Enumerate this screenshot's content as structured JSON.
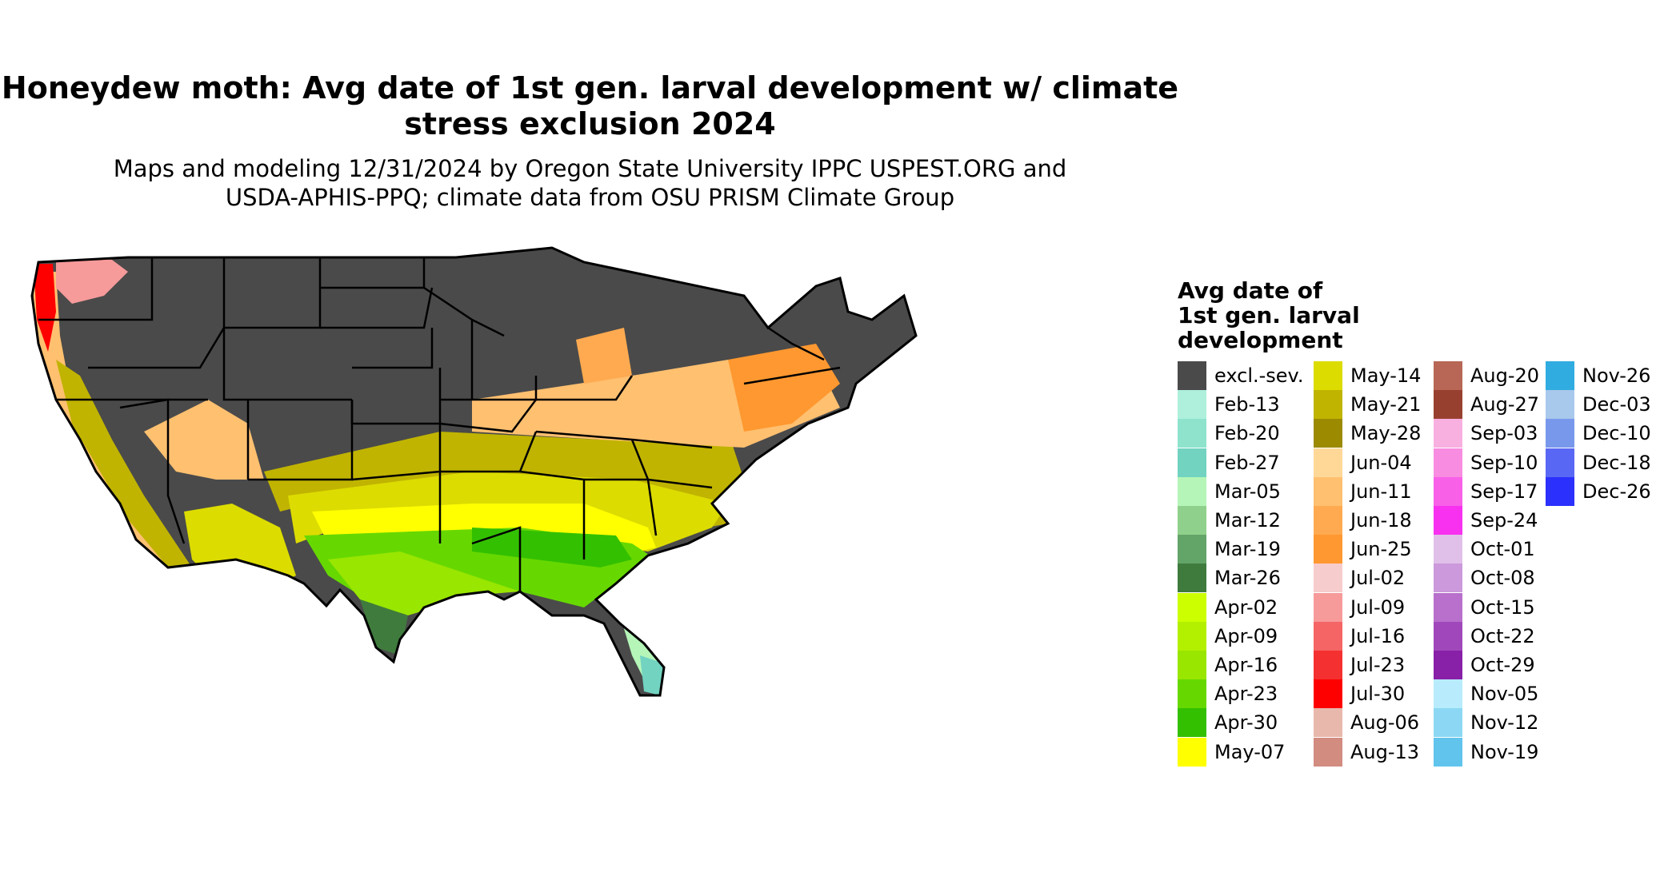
{
  "title": "Honeydew moth: Avg date of 1st gen. larval development w/ climate stress exclusion 2024",
  "title_line1": "Honeydew moth: Avg date of 1st gen. larval development w/ climate",
  "title_line2": "stress exclusion 2024",
  "subtitle_line1": "Maps and modeling 12/31/2024 by Oregon State University IPPC USPEST.ORG and",
  "subtitle_line2": "USDA-APHIS-PPQ; climate data from OSU PRISM Climate Group",
  "legend": {
    "title_line1": "Avg date of",
    "title_line2": "1st gen. larval",
    "title_line3": "development",
    "items": [
      {
        "label": "excl.-sev.",
        "color": "#4a4a4a"
      },
      {
        "label": "Feb-13",
        "color": "#aef0dc"
      },
      {
        "label": "Feb-20",
        "color": "#8fe3cd"
      },
      {
        "label": "Feb-27",
        "color": "#72d3c1"
      },
      {
        "label": "Mar-05",
        "color": "#b5f5b8"
      },
      {
        "label": "Mar-12",
        "color": "#8fd18c"
      },
      {
        "label": "Mar-19",
        "color": "#63a468"
      },
      {
        "label": "Mar-26",
        "color": "#3f7b3d"
      },
      {
        "label": "Apr-02",
        "color": "#ccff00"
      },
      {
        "label": "Apr-09",
        "color": "#b3f000"
      },
      {
        "label": "Apr-16",
        "color": "#99e600"
      },
      {
        "label": "Apr-23",
        "color": "#66d800"
      },
      {
        "label": "Apr-30",
        "color": "#33c000"
      },
      {
        "label": "May-07",
        "color": "#ffff00"
      },
      {
        "label": "May-14",
        "color": "#dcdc00"
      },
      {
        "label": "May-21",
        "color": "#c0b400"
      },
      {
        "label": "May-28",
        "color": "#9c8a00"
      },
      {
        "label": "Jun-04",
        "color": "#ffd898"
      },
      {
        "label": "Jun-11",
        "color": "#ffc070"
      },
      {
        "label": "Jun-18",
        "color": "#ffaa50"
      },
      {
        "label": "Jun-25",
        "color": "#ff9830"
      },
      {
        "label": "Jul-02",
        "color": "#f7cccc"
      },
      {
        "label": "Jul-09",
        "color": "#f79a9a"
      },
      {
        "label": "Jul-16",
        "color": "#f56565"
      },
      {
        "label": "Jul-23",
        "color": "#f53030"
      },
      {
        "label": "Jul-30",
        "color": "#ff0000"
      },
      {
        "label": "Aug-06",
        "color": "#e8b8ac"
      },
      {
        "label": "Aug-13",
        "color": "#d28c80"
      },
      {
        "label": "Aug-20",
        "color": "#b86656"
      },
      {
        "label": "Aug-27",
        "color": "#984030"
      },
      {
        "label": "Sep-03",
        "color": "#f8b0e0"
      },
      {
        "label": "Sep-10",
        "color": "#f88ce0"
      },
      {
        "label": "Sep-17",
        "color": "#f860e8"
      },
      {
        "label": "Sep-24",
        "color": "#f830f0"
      },
      {
        "label": "Oct-01",
        "color": "#e0c0e8"
      },
      {
        "label": "Oct-08",
        "color": "#cc99dd"
      },
      {
        "label": "Oct-15",
        "color": "#b870cc"
      },
      {
        "label": "Oct-22",
        "color": "#a048bb"
      },
      {
        "label": "Oct-29",
        "color": "#8820a8"
      },
      {
        "label": "Nov-05",
        "color": "#b8ecfc"
      },
      {
        "label": "Nov-12",
        "color": "#8cd8f4"
      },
      {
        "label": "Nov-19",
        "color": "#60c4ec"
      },
      {
        "label": "Nov-26",
        "color": "#30ace0"
      },
      {
        "label": "Dec-03",
        "color": "#a8c8ec"
      },
      {
        "label": "Dec-10",
        "color": "#7898ec"
      },
      {
        "label": "Dec-18",
        "color": "#5868f4"
      },
      {
        "label": "Dec-26",
        "color": "#2c30fc"
      }
    ]
  },
  "colors": {
    "excluded": "#4a4a4a",
    "state_border": "#000000"
  }
}
